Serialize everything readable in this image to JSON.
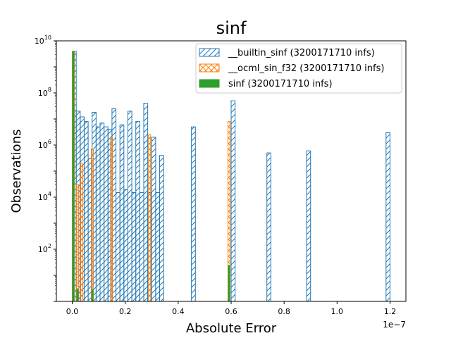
{
  "chart_data": {
    "type": "bar",
    "title": "sinf",
    "xlabel": "Absolute Error",
    "ylabel": "Observations",
    "x_offset_label": "1e−7",
    "xlim": [
      -0.06,
      1.26
    ],
    "ylim": [
      1,
      10000000000
    ],
    "yscale": "log",
    "x_ticks": [
      0.0,
      0.2,
      0.4,
      0.6,
      0.8,
      1.0,
      1.2
    ],
    "x_tick_labels": [
      "0.0",
      "0.2",
      "0.4",
      "0.6",
      "0.8",
      "1.0",
      "1.2"
    ],
    "y_ticks": [
      100,
      10000,
      1000000,
      100000000,
      10000000000
    ],
    "y_tick_labels": [
      {
        "base": "10",
        "exp": "2"
      },
      {
        "base": "10",
        "exp": "4"
      },
      {
        "base": "10",
        "exp": "6"
      },
      {
        "base": "10",
        "exp": "8"
      },
      {
        "base": "10",
        "exp": "10"
      }
    ],
    "legend_position": "top-right",
    "series": [
      {
        "name": "__builtin_sinf (3200171710 infs)",
        "color": "#1f77b4",
        "style": "hatched-outline",
        "hatch": "forward",
        "bin_width": 0.015,
        "bins": [
          {
            "x": 0.0,
            "y": 4000000000
          },
          {
            "x": 0.015,
            "y": 20000000
          },
          {
            "x": 0.03,
            "y": 12000000
          },
          {
            "x": 0.045,
            "y": 8000000
          },
          {
            "x": 0.06,
            "y": 300000
          },
          {
            "x": 0.075,
            "y": 18000000
          },
          {
            "x": 0.09,
            "y": 5000000
          },
          {
            "x": 0.105,
            "y": 7000000
          },
          {
            "x": 0.12,
            "y": 5000000
          },
          {
            "x": 0.135,
            "y": 4000000
          },
          {
            "x": 0.15,
            "y": 25000000
          },
          {
            "x": 0.165,
            "y": 15000
          },
          {
            "x": 0.18,
            "y": 6000000
          },
          {
            "x": 0.195,
            "y": 20000
          },
          {
            "x": 0.21,
            "y": 20000000
          },
          {
            "x": 0.225,
            "y": 15000
          },
          {
            "x": 0.24,
            "y": 8000000
          },
          {
            "x": 0.255,
            "y": 15000
          },
          {
            "x": 0.27,
            "y": 40000000
          },
          {
            "x": 0.285,
            "y": 15000
          },
          {
            "x": 0.3,
            "y": 2000000
          },
          {
            "x": 0.315,
            "y": 15000
          },
          {
            "x": 0.33,
            "y": 400000
          },
          {
            "x": 0.45,
            "y": 5000000
          },
          {
            "x": 0.6,
            "y": 50000000
          },
          {
            "x": 0.735,
            "y": 500000
          },
          {
            "x": 0.885,
            "y": 600000
          },
          {
            "x": 1.185,
            "y": 3000000
          }
        ]
      },
      {
        "name": "__ocml_sin_f32 (3200171710 infs)",
        "color": "#ff7f0e",
        "style": "hatched-outline",
        "hatch": "cross",
        "bin_width": 0.008,
        "bins": [
          {
            "x": 0.0,
            "y": 4000000000
          },
          {
            "x": 0.016,
            "y": 30000
          },
          {
            "x": 0.032,
            "y": 200000
          },
          {
            "x": 0.072,
            "y": 700000
          },
          {
            "x": 0.144,
            "y": 2000000
          },
          {
            "x": 0.288,
            "y": 2500000
          },
          {
            "x": 0.588,
            "y": 8000000
          }
        ]
      },
      {
        "name": "sinf (3200171710 infs)",
        "color": "#2ca02c",
        "style": "filled",
        "bin_width": 0.008,
        "bins": [
          {
            "x": 0.0,
            "y": 4000000000
          },
          {
            "x": 0.016,
            "y": 3
          },
          {
            "x": 0.072,
            "y": 3
          },
          {
            "x": 0.588,
            "y": 25
          }
        ]
      }
    ]
  }
}
